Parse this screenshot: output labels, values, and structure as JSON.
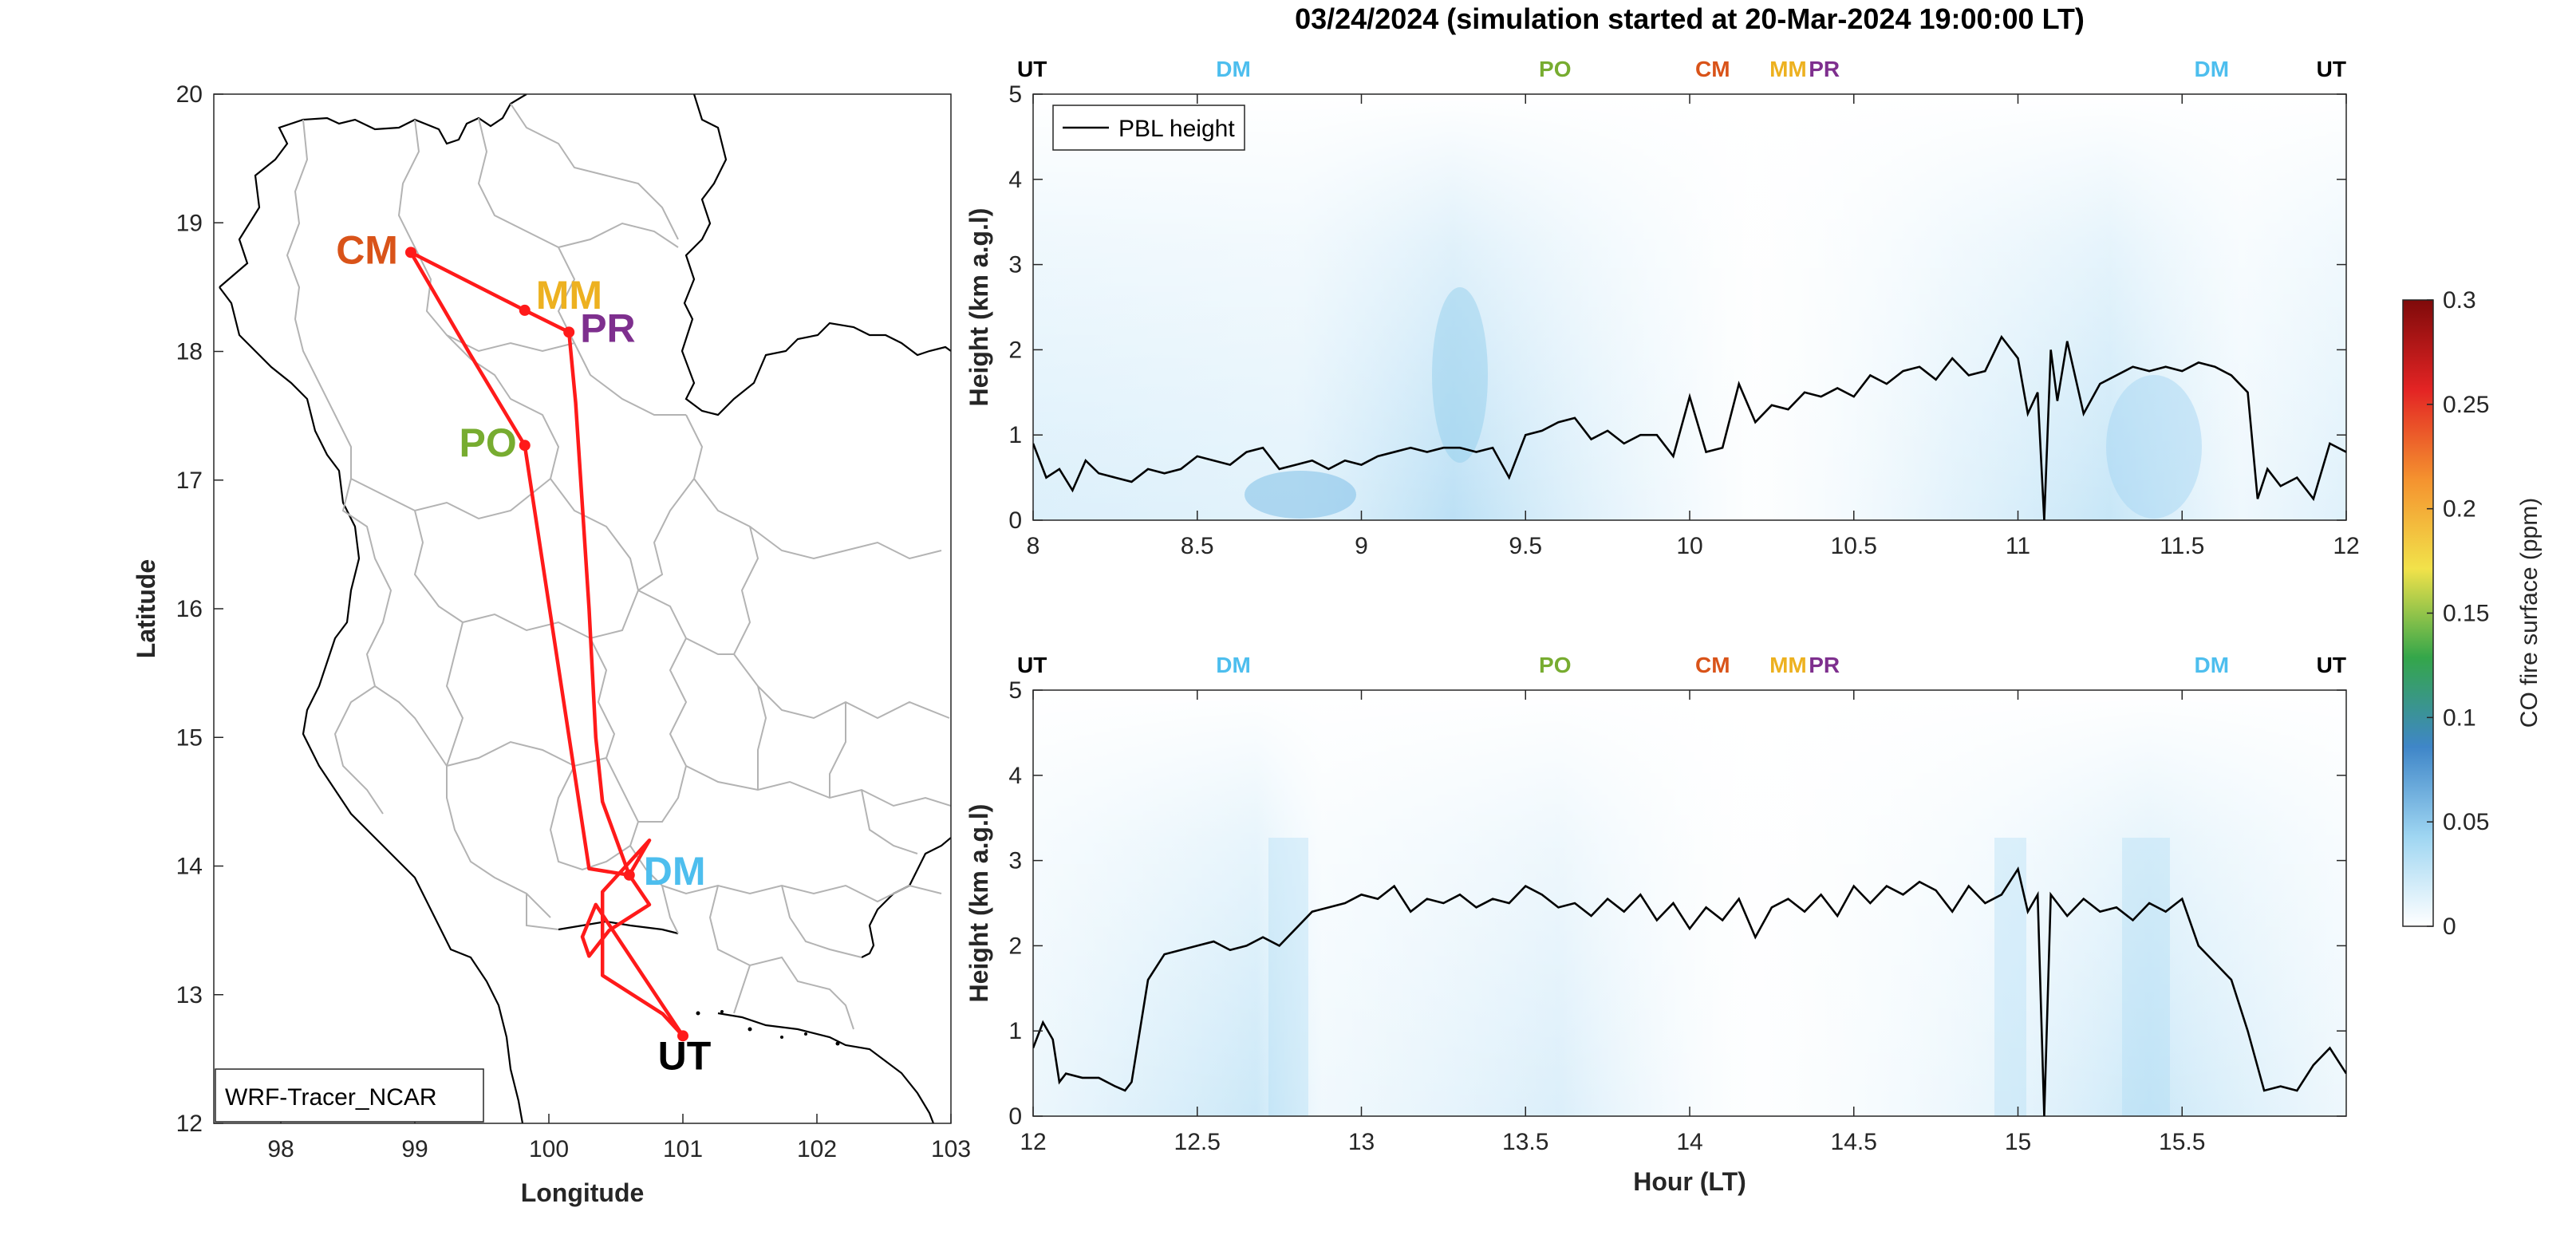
{
  "figure": {
    "title": "03/24/2024 (simulation started at 20-Mar-2024 19:00:00 LT)"
  },
  "colors": {
    "route": "#ff1a1a",
    "pbl_line": "#000000",
    "site_UT": "#000000",
    "site_DM": "#4dbeee",
    "site_PO": "#77ac30",
    "site_CM": "#d95319",
    "site_MM": "#edb120",
    "site_PR": "#7e2f8e"
  },
  "chart_data": [
    {
      "type": "scatter",
      "panel": "map",
      "xlabel": "Longitude",
      "ylabel": "Latitude",
      "xlim": [
        97.5,
        103
      ],
      "ylim": [
        12,
        20
      ],
      "xticks": [
        98,
        99,
        100,
        101,
        102,
        103
      ],
      "yticks": [
        12,
        13,
        14,
        15,
        16,
        17,
        18,
        19,
        20
      ],
      "model_label": "WRF-Tracer_NCAR",
      "stations": [
        {
          "name": "CM",
          "lon": 98.97,
          "lat": 18.77,
          "color": "#d95319"
        },
        {
          "name": "MM",
          "lon": 99.82,
          "lat": 18.32,
          "color": "#edb120"
        },
        {
          "name": "PR",
          "lon": 100.15,
          "lat": 18.15,
          "color": "#7e2f8e"
        },
        {
          "name": "PO",
          "lon": 99.82,
          "lat": 17.27,
          "color": "#77ac30"
        },
        {
          "name": "DM",
          "lon": 100.6,
          "lat": 13.93,
          "color": "#4dbeee"
        },
        {
          "name": "UT",
          "lon": 101.0,
          "lat": 12.68,
          "color": "#000000"
        }
      ],
      "route": {
        "lon": [
          101.0,
          100.85,
          100.4,
          100.4,
          100.75,
          100.6,
          100.3,
          99.82,
          99.4,
          98.97,
          99.82,
          100.15,
          100.2,
          100.25,
          100.3,
          100.35,
          100.4,
          100.6,
          100.75,
          100.45,
          100.3,
          100.25,
          100.35,
          101.0
        ],
        "lat": [
          12.68,
          12.85,
          13.15,
          13.8,
          14.2,
          13.93,
          13.98,
          17.27,
          18.0,
          18.77,
          18.32,
          18.15,
          17.6,
          16.8,
          16.0,
          15.0,
          14.5,
          13.93,
          13.7,
          13.5,
          13.3,
          13.45,
          13.7,
          12.68
        ]
      }
    },
    {
      "type": "line",
      "panel": "top",
      "ylabel": "Height (km a.g.l)",
      "xlim": [
        8,
        12
      ],
      "ylim": [
        0,
        5
      ],
      "xticks": [
        8,
        8.5,
        9,
        9.5,
        10,
        10.5,
        11,
        11.5,
        12
      ],
      "xtick_labels": [
        "8",
        "8.5",
        "9",
        "9.5",
        "10",
        "10.5",
        "11",
        "11.5",
        "12"
      ],
      "yticks": [
        0,
        1,
        2,
        3,
        4,
        5
      ],
      "legend": "PBL height",
      "legend_loc": "top-left",
      "site_markers": [
        {
          "name": "UT",
          "x": 8.0,
          "color": "#000000"
        },
        {
          "name": "DM",
          "x": 8.61,
          "color": "#4dbeee"
        },
        {
          "name": "PO",
          "x": 9.59,
          "color": "#77ac30"
        },
        {
          "name": "CM",
          "x": 10.07,
          "color": "#d95319"
        },
        {
          "name": "MM",
          "x": 10.3,
          "color": "#edb120"
        },
        {
          "name": "PR",
          "x": 10.41,
          "color": "#7e2f8e"
        },
        {
          "name": "DM",
          "x": 11.59,
          "color": "#4dbeee"
        },
        {
          "name": "UT",
          "x": 12.0,
          "color": "#000000"
        }
      ],
      "series": [
        {
          "x": [
            8.0,
            8.04,
            8.08,
            8.12,
            8.16,
            8.2,
            8.25,
            8.3,
            8.35,
            8.4,
            8.45,
            8.5,
            8.55,
            8.6,
            8.65,
            8.7,
            8.75,
            8.8,
            8.85,
            8.9,
            8.95,
            9.0,
            9.05,
            9.1,
            9.15,
            9.2,
            9.25,
            9.3,
            9.35,
            9.4,
            9.45,
            9.5,
            9.55,
            9.6,
            9.65,
            9.7,
            9.75,
            9.8,
            9.85,
            9.9,
            9.95,
            10.0,
            10.05,
            10.1,
            10.15,
            10.2,
            10.25,
            10.3,
            10.35,
            10.4,
            10.45,
            10.5,
            10.55,
            10.6,
            10.65,
            10.7,
            10.75,
            10.8,
            10.85,
            10.9,
            10.95,
            11.0,
            11.03,
            11.06,
            11.08,
            11.1,
            11.12,
            11.15,
            11.2,
            11.25,
            11.3,
            11.35,
            11.4,
            11.45,
            11.5,
            11.55,
            11.6,
            11.65,
            11.7,
            11.73,
            11.76,
            11.8,
            11.85,
            11.9,
            11.95,
            12.0
          ],
          "values": [
            0.9,
            0.5,
            0.6,
            0.35,
            0.7,
            0.55,
            0.5,
            0.45,
            0.6,
            0.55,
            0.6,
            0.75,
            0.7,
            0.65,
            0.8,
            0.85,
            0.6,
            0.65,
            0.7,
            0.6,
            0.7,
            0.65,
            0.75,
            0.8,
            0.85,
            0.8,
            0.85,
            0.85,
            0.8,
            0.85,
            0.5,
            1.0,
            1.05,
            1.15,
            1.2,
            0.95,
            1.05,
            0.9,
            1.0,
            1.0,
            0.75,
            1.45,
            0.8,
            0.85,
            1.6,
            1.15,
            1.35,
            1.3,
            1.5,
            1.45,
            1.55,
            1.45,
            1.7,
            1.6,
            1.75,
            1.8,
            1.65,
            1.9,
            1.7,
            1.75,
            2.15,
            1.9,
            1.25,
            1.5,
            0.0,
            2.0,
            1.4,
            2.1,
            1.25,
            1.6,
            1.7,
            1.8,
            1.75,
            1.8,
            1.75,
            1.85,
            1.8,
            1.7,
            1.5,
            0.25,
            0.6,
            0.4,
            0.5,
            0.25,
            0.9,
            0.8
          ]
        }
      ]
    },
    {
      "type": "line",
      "panel": "bottom",
      "xlabel": "Hour (LT)",
      "ylabel": "Height (km a.g.l)",
      "xlim": [
        12,
        16
      ],
      "ylim": [
        0,
        5
      ],
      "xticks": [
        12,
        12.5,
        13,
        13.5,
        14,
        14.5,
        15,
        15.5
      ],
      "xtick_labels": [
        "12",
        "12.5",
        "13",
        "13.5",
        "14",
        "14.5",
        "15",
        "15.5"
      ],
      "yticks": [
        0,
        1,
        2,
        3,
        4,
        5
      ],
      "site_markers": [
        {
          "name": "UT",
          "x": 12.0,
          "color": "#000000"
        },
        {
          "name": "DM",
          "x": 12.61,
          "color": "#4dbeee"
        },
        {
          "name": "PO",
          "x": 13.59,
          "color": "#77ac30"
        },
        {
          "name": "CM",
          "x": 14.07,
          "color": "#d95319"
        },
        {
          "name": "MM",
          "x": 14.3,
          "color": "#edb120"
        },
        {
          "name": "PR",
          "x": 14.41,
          "color": "#7e2f8e"
        },
        {
          "name": "DM",
          "x": 15.59,
          "color": "#4dbeee"
        },
        {
          "name": "UT",
          "x": 16.0,
          "color": "#000000"
        }
      ],
      "series": [
        {
          "x": [
            12.0,
            12.03,
            12.06,
            12.08,
            12.1,
            12.15,
            12.2,
            12.25,
            12.28,
            12.3,
            12.35,
            12.4,
            12.45,
            12.5,
            12.55,
            12.6,
            12.65,
            12.7,
            12.75,
            12.8,
            12.85,
            12.9,
            12.95,
            13.0,
            13.05,
            13.1,
            13.15,
            13.2,
            13.25,
            13.3,
            13.35,
            13.4,
            13.45,
            13.5,
            13.55,
            13.6,
            13.65,
            13.7,
            13.75,
            13.8,
            13.85,
            13.9,
            13.95,
            14.0,
            14.05,
            14.1,
            14.15,
            14.2,
            14.25,
            14.3,
            14.35,
            14.4,
            14.45,
            14.5,
            14.55,
            14.6,
            14.65,
            14.7,
            14.75,
            14.8,
            14.85,
            14.9,
            14.95,
            15.0,
            15.03,
            15.06,
            15.08,
            15.1,
            15.12,
            15.15,
            15.2,
            15.25,
            15.3,
            15.35,
            15.4,
            15.45,
            15.5,
            15.55,
            15.6,
            15.65,
            15.7,
            15.75,
            15.8,
            15.85,
            15.9,
            15.95,
            16.0
          ],
          "values": [
            0.8,
            1.1,
            0.9,
            0.4,
            0.5,
            0.45,
            0.45,
            0.35,
            0.3,
            0.4,
            1.6,
            1.9,
            1.95,
            2.0,
            2.05,
            1.95,
            2.0,
            2.1,
            2.0,
            2.2,
            2.4,
            2.45,
            2.5,
            2.6,
            2.55,
            2.7,
            2.4,
            2.55,
            2.5,
            2.6,
            2.45,
            2.55,
            2.5,
            2.7,
            2.6,
            2.45,
            2.5,
            2.35,
            2.55,
            2.4,
            2.6,
            2.3,
            2.5,
            2.2,
            2.45,
            2.3,
            2.55,
            2.1,
            2.45,
            2.55,
            2.4,
            2.6,
            2.35,
            2.7,
            2.5,
            2.7,
            2.6,
            2.75,
            2.65,
            2.4,
            2.7,
            2.5,
            2.6,
            2.9,
            2.4,
            2.6,
            0.0,
            2.6,
            2.5,
            2.35,
            2.55,
            2.4,
            2.45,
            2.3,
            2.5,
            2.4,
            2.55,
            2.0,
            1.8,
            1.6,
            1.0,
            0.3,
            0.35,
            0.3,
            0.6,
            0.8,
            0.5
          ]
        }
      ]
    },
    {
      "type": "heatmap",
      "panel": "colorbar",
      "label": "CO fire surface (ppm)",
      "range": [
        0,
        0.3
      ],
      "ticks": [
        0,
        0.05,
        0.1,
        0.15,
        0.2,
        0.25,
        0.3
      ],
      "tick_labels": [
        "0",
        "0.05",
        "0.1",
        "0.15",
        "0.2",
        "0.25",
        "0.3"
      ],
      "colormap": [
        "#ffffff",
        "#9fd6f2",
        "#3f86c8",
        "#34a64a",
        "#f2e24a",
        "#f4922f",
        "#e32424",
        "#7f0a0a"
      ]
    }
  ]
}
